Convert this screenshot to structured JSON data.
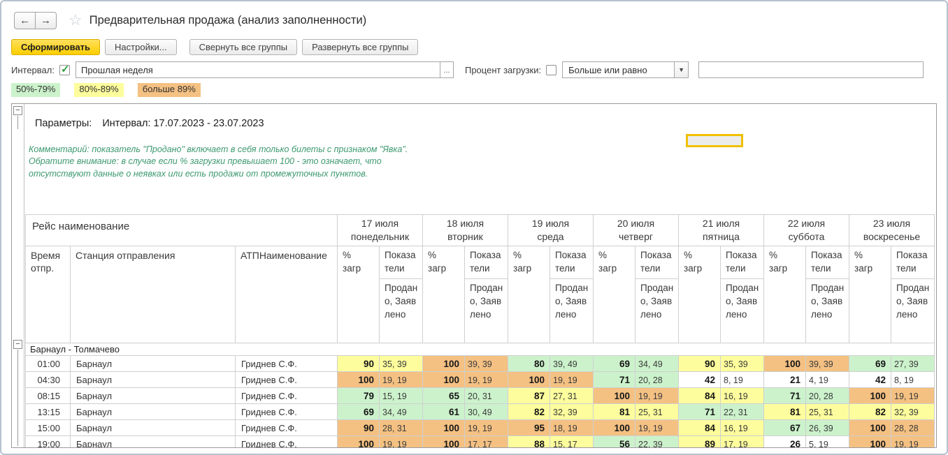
{
  "window": {
    "title": "Предварительная продажа (анализ заполненности)"
  },
  "icons": {
    "back": "←",
    "forward": "→",
    "star": "☆",
    "dropdown": "▼",
    "check": "✓",
    "collapse": "−",
    "ellipsis": "..."
  },
  "toolbar": {
    "generate_label": "Сформировать",
    "settings_label": "Настройки...",
    "collapse_label": "Свернуть все группы",
    "expand_label": "Развернуть все группы"
  },
  "filters": {
    "interval_label": "Интервал:",
    "interval_checked": true,
    "interval_value": "Прошлая неделя",
    "percent_label": "Процент загрузки:",
    "percent_checked": false,
    "comparison_value": "Больше или равно",
    "percent_value": ""
  },
  "legend": [
    {
      "label": "50%-79%",
      "color": "#ccf2cc"
    },
    {
      "label": "80%-89%",
      "color": "#fdfd9d"
    },
    {
      "label": "больше 89%",
      "color": "#f4c183"
    }
  ],
  "cell_colors": {
    "green": "#ccf2cc",
    "yellow": "#fdfd9d",
    "orange": "#f4c183",
    "white": "#ffffff"
  },
  "selection_highlight_color": "#f0c000",
  "report": {
    "params_label": "Параметры:",
    "params_value": "Интервал: 17.07.2023 - 23.07.2023",
    "comment": "Комментарий: показатель \"Продано\" включает в себя только билеты с признаком \"Явка\". Обратите внимание: в случае если % загрузки превышает 100 - это означает, что отсутствуют данные о неявках или есть продажи от промежуточных пунктов."
  },
  "table": {
    "route_header": "Рейс наименование",
    "col_time": "Время отпр.",
    "col_station": "Станция отправления",
    "col_atp": "АТПНаименование",
    "subcol_percent": "% загр",
    "subcol_indicators": "Показатели",
    "subcol_sold": "Продано, Заявлено",
    "days": [
      {
        "date": "17 июля",
        "weekday": "понедельник"
      },
      {
        "date": "18 июля",
        "weekday": "вторник"
      },
      {
        "date": "19 июля",
        "weekday": "среда"
      },
      {
        "date": "20 июля",
        "weekday": "четверг"
      },
      {
        "date": "21 июля",
        "weekday": "пятница"
      },
      {
        "date": "22 июля",
        "weekday": "суббота"
      },
      {
        "date": "23 июля",
        "weekday": "воскресенье"
      }
    ],
    "group": "Барнаул - Толмачево",
    "rows": [
      {
        "time": "01:00",
        "station": "Барнаул",
        "atp": "Гриднев С.Ф.",
        "cells": [
          {
            "pct": "90",
            "ind": "35, 39",
            "color": "yellow"
          },
          {
            "pct": "100",
            "ind": "39, 39",
            "color": "orange"
          },
          {
            "pct": "80",
            "ind": "39, 49",
            "color": "green"
          },
          {
            "pct": "69",
            "ind": "34, 49",
            "color": "green"
          },
          {
            "pct": "90",
            "ind": "35, 39",
            "color": "yellow"
          },
          {
            "pct": "100",
            "ind": "39, 39",
            "color": "orange"
          },
          {
            "pct": "69",
            "ind": "27, 39",
            "color": "green"
          }
        ]
      },
      {
        "time": "04:30",
        "station": "Барнаул",
        "atp": "Гриднев С.Ф.",
        "cells": [
          {
            "pct": "100",
            "ind": "19, 19",
            "color": "orange"
          },
          {
            "pct": "100",
            "ind": "19, 19",
            "color": "orange"
          },
          {
            "pct": "100",
            "ind": "19, 19",
            "color": "orange"
          },
          {
            "pct": "71",
            "ind": "20, 28",
            "color": "green"
          },
          {
            "pct": "42",
            "ind": "8, 19",
            "color": "white"
          },
          {
            "pct": "21",
            "ind": "4, 19",
            "color": "white"
          },
          {
            "pct": "42",
            "ind": "8, 19",
            "color": "white"
          }
        ]
      },
      {
        "time": "08:15",
        "station": "Барнаул",
        "atp": "Гриднев С.Ф.",
        "cells": [
          {
            "pct": "79",
            "ind": "15, 19",
            "color": "green"
          },
          {
            "pct": "65",
            "ind": "20, 31",
            "color": "green"
          },
          {
            "pct": "87",
            "ind": "27, 31",
            "color": "yellow"
          },
          {
            "pct": "100",
            "ind": "19, 19",
            "color": "orange"
          },
          {
            "pct": "84",
            "ind": "16, 19",
            "color": "yellow"
          },
          {
            "pct": "71",
            "ind": "20, 28",
            "color": "green"
          },
          {
            "pct": "100",
            "ind": "19, 19",
            "color": "orange"
          }
        ]
      },
      {
        "time": "13:15",
        "station": "Барнаул",
        "atp": "Гриднев С.Ф.",
        "cells": [
          {
            "pct": "69",
            "ind": "34, 49",
            "color": "green"
          },
          {
            "pct": "61",
            "ind": "30, 49",
            "color": "green"
          },
          {
            "pct": "82",
            "ind": "32, 39",
            "color": "yellow"
          },
          {
            "pct": "81",
            "ind": "25, 31",
            "color": "yellow"
          },
          {
            "pct": "71",
            "ind": "22, 31",
            "color": "green"
          },
          {
            "pct": "81",
            "ind": "25, 31",
            "color": "yellow"
          },
          {
            "pct": "82",
            "ind": "32, 39",
            "color": "yellow"
          }
        ]
      },
      {
        "time": "15:00",
        "station": "Барнаул",
        "atp": "Гриднев С.Ф.",
        "cells": [
          {
            "pct": "90",
            "ind": "28, 31",
            "color": "orange"
          },
          {
            "pct": "100",
            "ind": "19, 19",
            "color": "orange"
          },
          {
            "pct": "95",
            "ind": "18, 19",
            "color": "orange"
          },
          {
            "pct": "100",
            "ind": "19, 19",
            "color": "orange"
          },
          {
            "pct": "84",
            "ind": "16, 19",
            "color": "yellow"
          },
          {
            "pct": "67",
            "ind": "26, 39",
            "color": "green"
          },
          {
            "pct": "100",
            "ind": "28, 28",
            "color": "orange"
          }
        ]
      },
      {
        "time": "19:00",
        "station": "Барнаул",
        "atp": "Гриднев С.Ф.",
        "cells": [
          {
            "pct": "100",
            "ind": "19, 19",
            "color": "orange"
          },
          {
            "pct": "100",
            "ind": "17, 17",
            "color": "orange"
          },
          {
            "pct": "88",
            "ind": "15, 17",
            "color": "yellow"
          },
          {
            "pct": "56",
            "ind": "22, 39",
            "color": "green"
          },
          {
            "pct": "89",
            "ind": "17, 19",
            "color": "yellow"
          },
          {
            "pct": "26",
            "ind": "5, 19",
            "color": "white"
          },
          {
            "pct": "100",
            "ind": "19, 19",
            "color": "orange"
          }
        ]
      }
    ]
  }
}
